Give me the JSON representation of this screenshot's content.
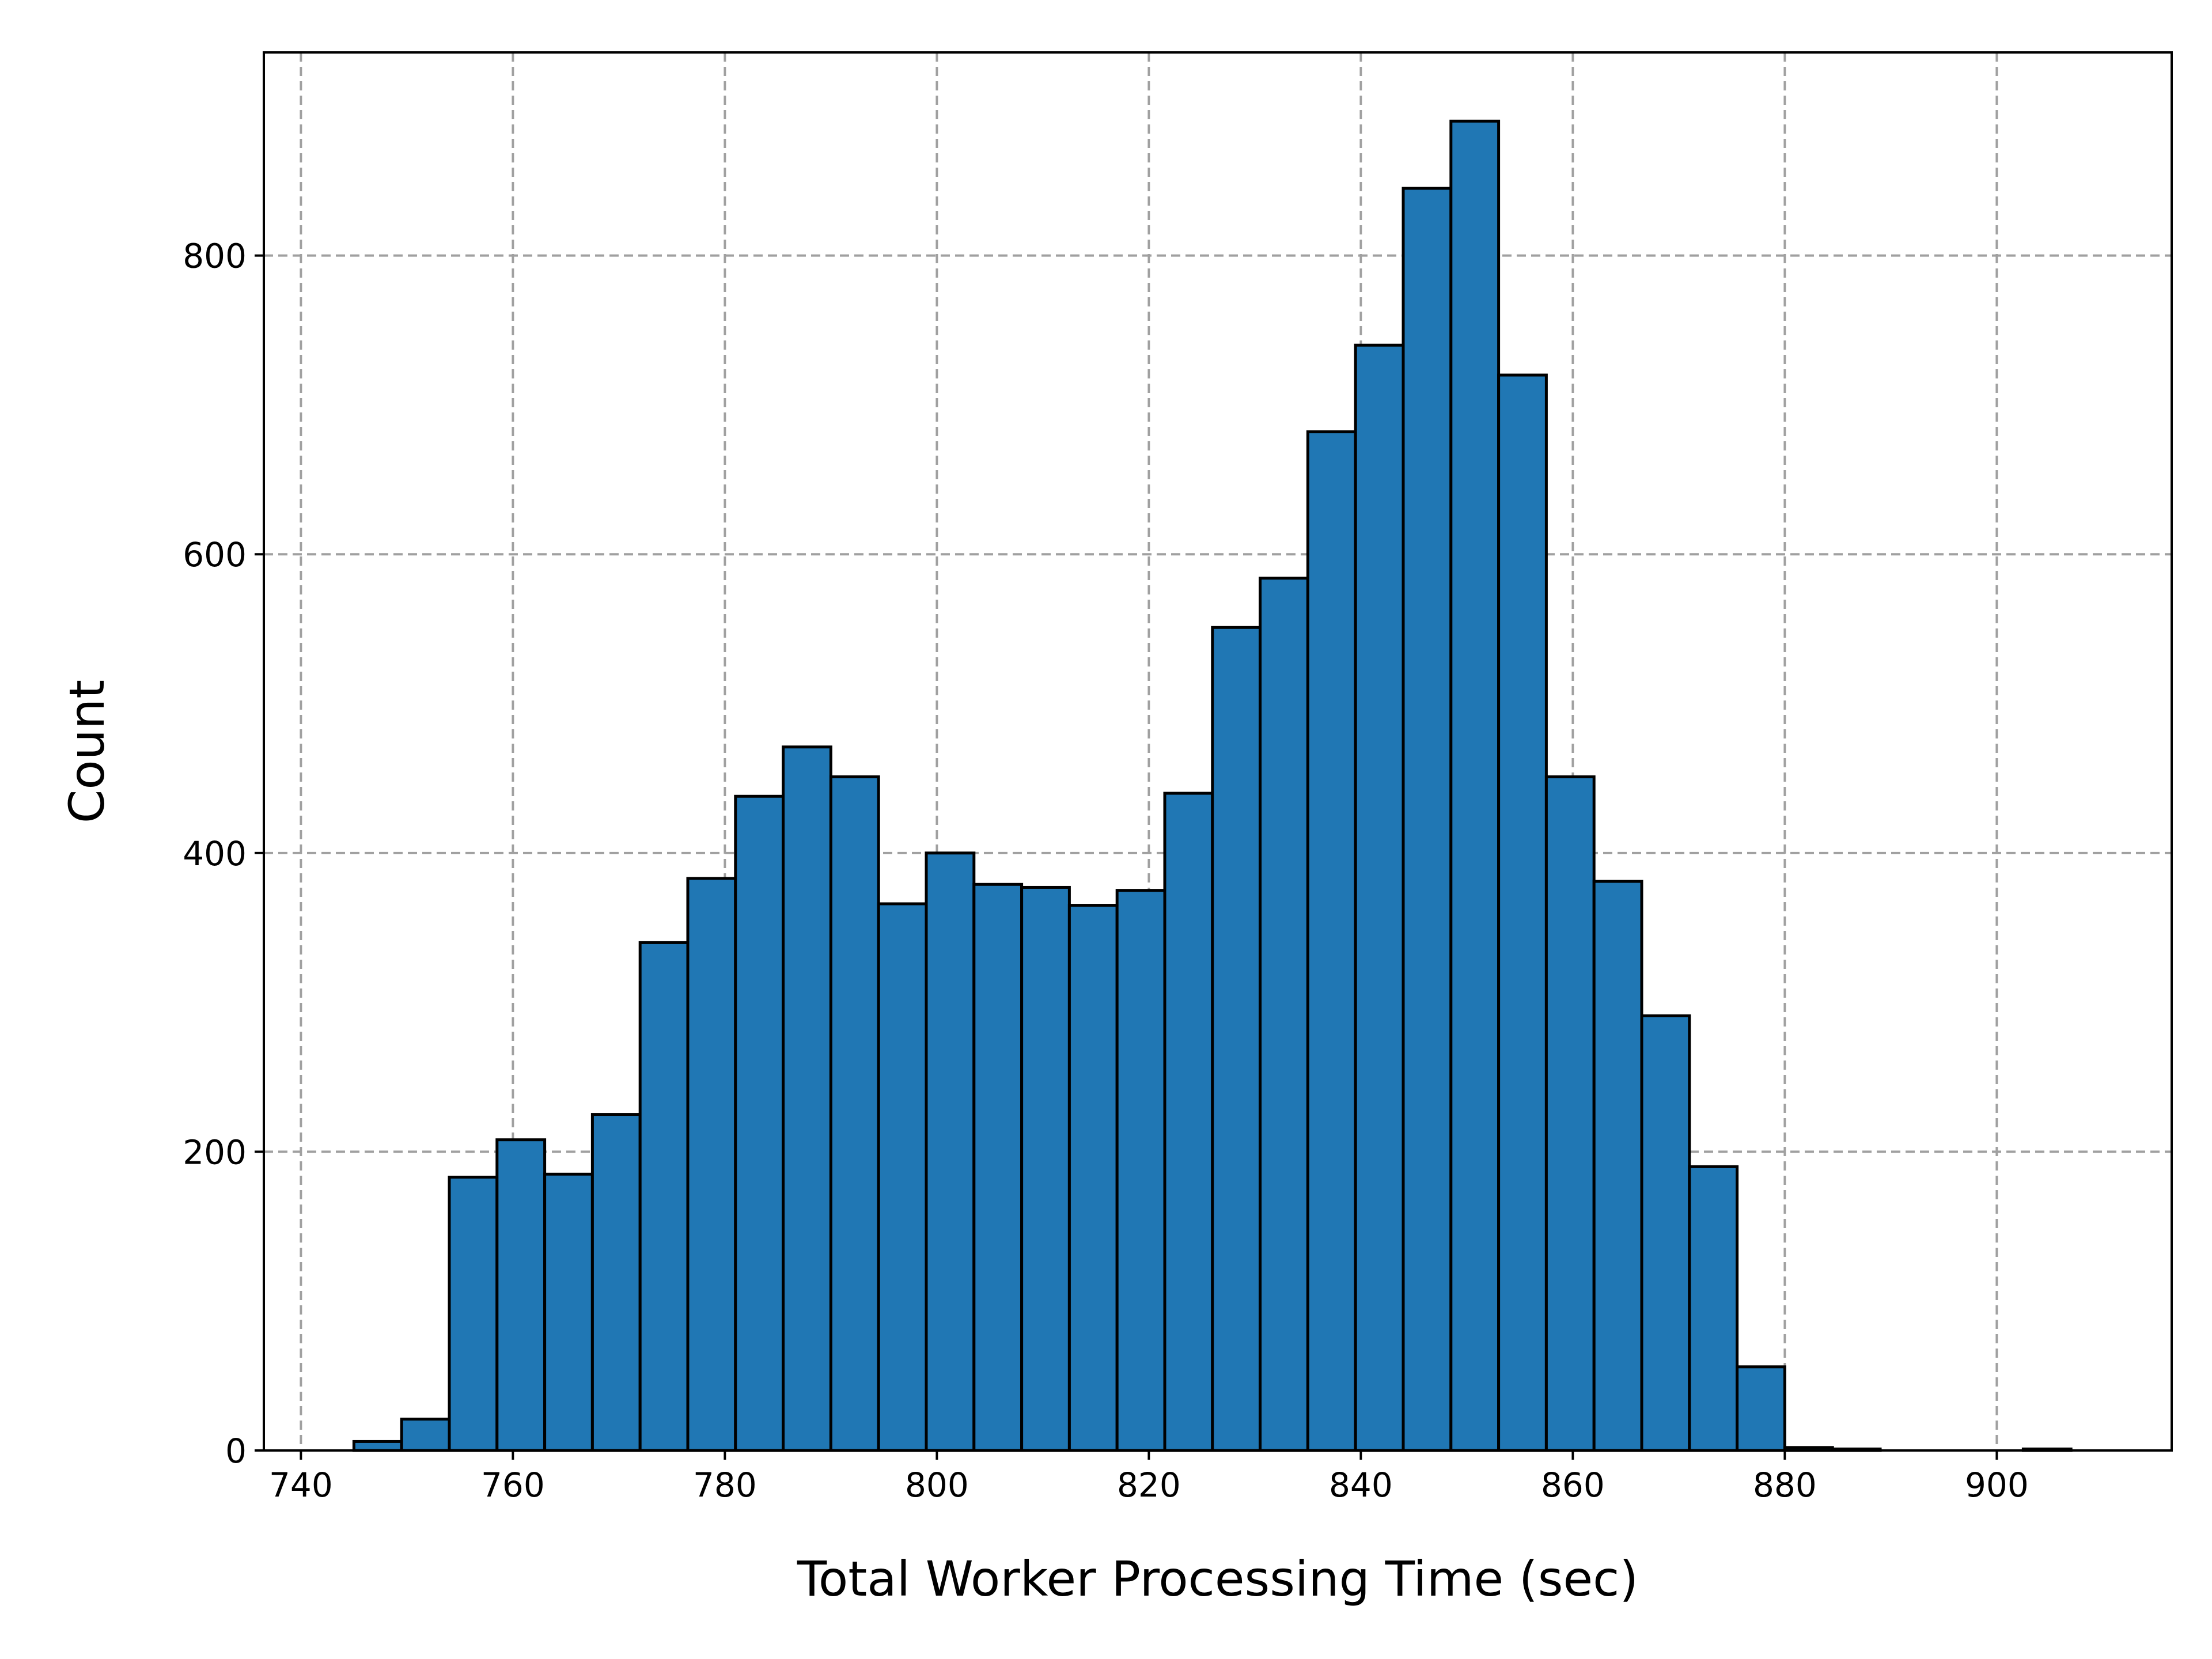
{
  "chart_data": {
    "type": "histogram",
    "xlabel": "Total Worker Processing Time (sec)",
    "ylabel": "Count",
    "xlim": [
      736.5,
      916.5
    ],
    "ylim": [
      0,
      936
    ],
    "xticks": [
      740,
      760,
      780,
      800,
      820,
      840,
      860,
      880,
      900
    ],
    "yticks": [
      0,
      200,
      400,
      600,
      800
    ],
    "grid": true,
    "bar_color": "#2077b4",
    "edge_color": "#000000",
    "bin_edges": [
      740.5,
      745.0,
      749.5,
      754.0,
      758.5,
      763.0,
      767.5,
      772.0,
      776.5,
      781.0,
      785.5,
      790.0,
      794.5,
      799.0,
      803.5,
      808.0,
      812.5,
      817.0,
      821.5,
      826.0,
      830.5,
      835.0,
      839.5,
      844.0,
      848.5,
      853.0,
      857.5,
      862.0,
      866.5,
      871.0,
      875.5,
      880.0,
      884.5,
      889.0,
      893.5,
      898.0,
      902.5,
      907.0
    ],
    "counts": [
      0,
      6,
      21,
      183,
      208,
      185,
      225,
      340,
      383,
      438,
      471,
      451,
      366,
      400,
      379,
      377,
      365,
      375,
      440,
      551,
      584,
      682,
      740,
      845,
      890,
      720,
      451,
      381,
      291,
      190,
      56,
      2,
      1,
      0,
      0,
      0,
      1
    ]
  }
}
